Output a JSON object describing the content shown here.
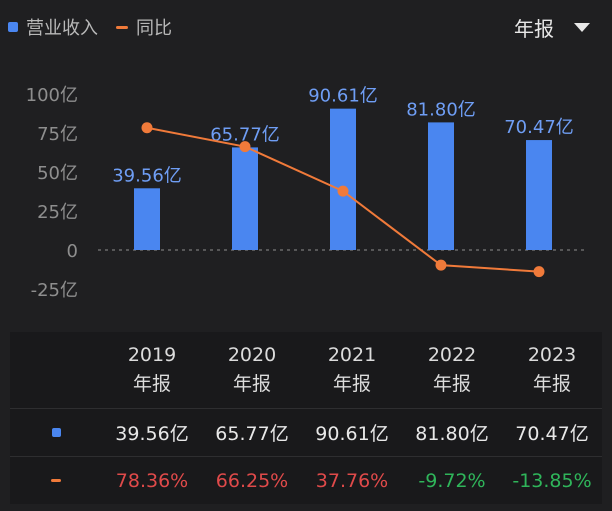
{
  "legend": {
    "bar_label": "营业收入",
    "line_label": "同比"
  },
  "period_selector": {
    "value": "年报"
  },
  "chart_data": {
    "type": "bar",
    "categories": [
      "2019",
      "2020",
      "2021",
      "2022",
      "2023"
    ],
    "series": [
      {
        "name": "营业收入",
        "type": "bar",
        "values": [
          39.56,
          65.77,
          90.61,
          81.8,
          70.47
        ],
        "labels": [
          "39.56亿",
          "65.77亿",
          "90.61亿",
          "81.80亿",
          "70.47亿"
        ],
        "color": "#4a86f0"
      },
      {
        "name": "同比",
        "type": "line",
        "values": [
          78.36,
          66.25,
          37.76,
          -9.72,
          -13.85
        ],
        "color": "#f07a3a"
      }
    ],
    "y_ticks": [
      "100亿",
      "75亿",
      "50亿",
      "25亿",
      "0",
      "-25亿"
    ],
    "ylim": [
      -25,
      100
    ]
  },
  "table": {
    "columns": [
      {
        "year": "2019",
        "period": "年报"
      },
      {
        "year": "2020",
        "period": "年报"
      },
      {
        "year": "2021",
        "period": "年报"
      },
      {
        "year": "2022",
        "period": "年报"
      },
      {
        "year": "2023",
        "period": "年报"
      }
    ],
    "revenue": [
      "39.56亿",
      "65.77亿",
      "90.61亿",
      "81.80亿",
      "70.47亿"
    ],
    "yoy": [
      "78.36%",
      "66.25%",
      "37.76%",
      "-9.72%",
      "-13.85%"
    ]
  },
  "colors": {
    "bar": "#4a86f0",
    "line": "#f07a3a",
    "positive": "#e04a4a",
    "negative": "#2fb55a",
    "background": "#1f1f21"
  }
}
